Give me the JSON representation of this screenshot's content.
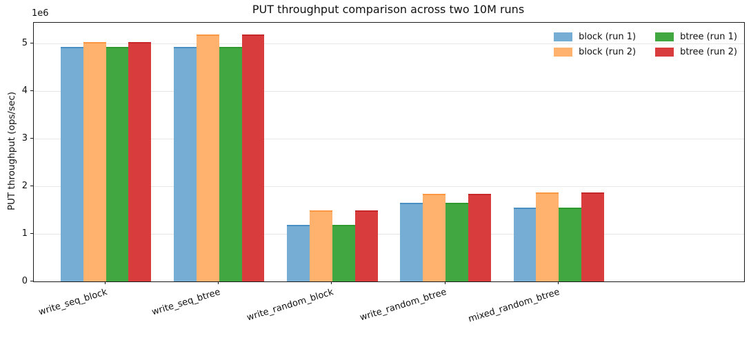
{
  "chart_data": {
    "type": "bar",
    "title": "PUT throughput comparison across two 10M runs",
    "ylabel": "PUT throughput (ops/sec)",
    "y_offset_label": "1e6",
    "categories": [
      "write_seq_block",
      "write_seq_btree",
      "write_random_block",
      "write_random_btree",
      "mixed_random_btree"
    ],
    "series": [
      {
        "name": "block (run 1)",
        "color": "#76ADD4",
        "edge_color": "#4A8FC2",
        "values": [
          4940000,
          4940000,
          1190000,
          1660000,
          1560000
        ]
      },
      {
        "name": "block (run 2)",
        "color": "#FFB26E",
        "edge_color": "#FB9743",
        "values": [
          5040000,
          5210000,
          1500000,
          1840000,
          1880000
        ]
      },
      {
        "name": "btree (run 1)",
        "color": "#41A741",
        "edge_color": "#2E9A2E",
        "values": [
          4940000,
          4940000,
          1190000,
          1660000,
          1560000
        ]
      },
      {
        "name": "btree (run 2)",
        "color": "#D93C3D",
        "edge_color": "#C62829",
        "values": [
          5040000,
          5210000,
          1500000,
          1840000,
          1880000
        ]
      }
    ],
    "ylim": [
      0,
      5450000
    ],
    "ytick_values": [
      0,
      1000000,
      2000000,
      3000000,
      4000000,
      5000000
    ],
    "ytick_labels": [
      "0",
      "1",
      "2",
      "3",
      "4",
      "5"
    ],
    "grid": "horizontal",
    "xtick_label_rotation_deg": 17,
    "legend": {
      "position": "upper right",
      "columns": 2,
      "entries": [
        "block (run 1)",
        "block (run 2)",
        "btree (run 1)",
        "btree (run 2)"
      ]
    },
    "style_colors": {
      "axis": "#1a1a1a",
      "grid": "#e6e6e6",
      "background": "#ffffff"
    }
  }
}
